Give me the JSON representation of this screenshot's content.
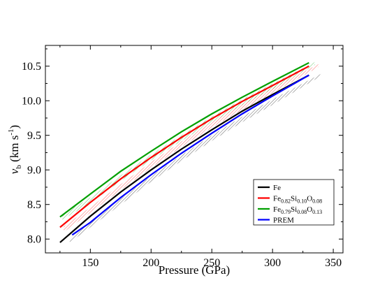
{
  "chart_data": {
    "type": "line",
    "title": "",
    "xlabel": "Pressure (GPa)",
    "ylabel": {
      "main": "v",
      "sub": "b",
      "units": " (km s",
      "sup": "-1",
      "close": ")"
    },
    "xlim": [
      113,
      358
    ],
    "ylim": [
      7.8,
      10.8
    ],
    "xticks": [
      150,
      200,
      250,
      300,
      350
    ],
    "yticks": [
      8.0,
      8.5,
      9.0,
      9.5,
      10.0,
      10.5
    ],
    "xtick_labels": [
      "150",
      "200",
      "250",
      "300",
      "350"
    ],
    "ytick_labels": [
      "8.0",
      "8.5",
      "9.0",
      "9.5",
      "10.0",
      "10.5"
    ],
    "grid": false,
    "legend_position": "bottom-right",
    "legend": [
      {
        "parts": [
          {
            "t": "Fe"
          }
        ],
        "color": "#000000"
      },
      {
        "parts": [
          {
            "t": "Fe"
          },
          {
            "t": "0.82",
            "sub": true
          },
          {
            "t": "Si"
          },
          {
            "t": "0.10",
            "sub": true
          },
          {
            "t": "O"
          },
          {
            "t": "0.08",
            "sub": true
          }
        ],
        "color": "#ff0000"
      },
      {
        "parts": [
          {
            "t": "Fe"
          },
          {
            "t": "0.79",
            "sub": true
          },
          {
            "t": "Si"
          },
          {
            "t": "0.08",
            "sub": true
          },
          {
            "t": "O"
          },
          {
            "t": "0.13",
            "sub": true
          }
        ],
        "color": "#00a000"
      },
      {
        "parts": [
          {
            "t": "PREM"
          }
        ],
        "color": "#0000ff"
      }
    ],
    "series": [
      {
        "name": "Fe",
        "color": "#000000",
        "x": [
          125,
          150,
          175,
          200,
          225,
          250,
          275,
          300,
          330
        ],
        "y": [
          7.95,
          8.33,
          8.68,
          9.0,
          9.3,
          9.58,
          9.85,
          10.09,
          10.37
        ],
        "band": {
          "x": [
            133,
            150,
            175,
            200,
            225,
            250,
            275,
            300,
            340
          ],
          "lower": [
            7.95,
            8.17,
            8.5,
            8.83,
            9.13,
            9.42,
            9.69,
            9.94,
            10.36
          ],
          "upper": [
            8.0,
            8.24,
            8.58,
            8.91,
            9.21,
            9.5,
            9.77,
            10.02,
            10.39
          ]
        }
      },
      {
        "name": "Fe0.82Si0.10O0.08",
        "color": "#ff0000",
        "x": [
          125,
          150,
          175,
          200,
          225,
          250,
          275,
          300,
          330
        ],
        "y": [
          8.17,
          8.53,
          8.87,
          9.18,
          9.47,
          9.74,
          9.99,
          10.22,
          10.5
        ],
        "band": {
          "x": [
            128,
            150,
            175,
            200,
            225,
            250,
            275,
            300,
            338
          ],
          "lower": [
            8.1,
            8.38,
            8.71,
            9.03,
            9.33,
            9.61,
            9.87,
            10.11,
            10.49
          ],
          "upper": [
            8.18,
            8.46,
            8.79,
            9.11,
            9.41,
            9.69,
            9.95,
            10.19,
            10.53
          ]
        }
      },
      {
        "name": "Fe0.79Si0.08O0.13",
        "color": "#00a000",
        "x": [
          125,
          150,
          175,
          200,
          225,
          250,
          275,
          300,
          330
        ],
        "y": [
          8.32,
          8.65,
          8.98,
          9.27,
          9.55,
          9.81,
          10.05,
          10.28,
          10.55
        ],
        "band": {
          "x": [
            127,
            150,
            175,
            200,
            225,
            250,
            275,
            300,
            335
          ],
          "lower": [
            8.28,
            8.52,
            8.84,
            9.14,
            9.42,
            9.69,
            9.94,
            10.17,
            10.52
          ],
          "upper": [
            8.36,
            8.6,
            8.92,
            9.22,
            9.5,
            9.77,
            10.02,
            10.25,
            10.56
          ]
        }
      },
      {
        "name": "PREM",
        "color": "#0000ff",
        "x": [
          135,
          150,
          175,
          200,
          225,
          250,
          275,
          300,
          330
        ],
        "y": [
          8.06,
          8.24,
          8.6,
          8.93,
          9.24,
          9.53,
          9.81,
          10.07,
          10.37
        ]
      }
    ]
  }
}
